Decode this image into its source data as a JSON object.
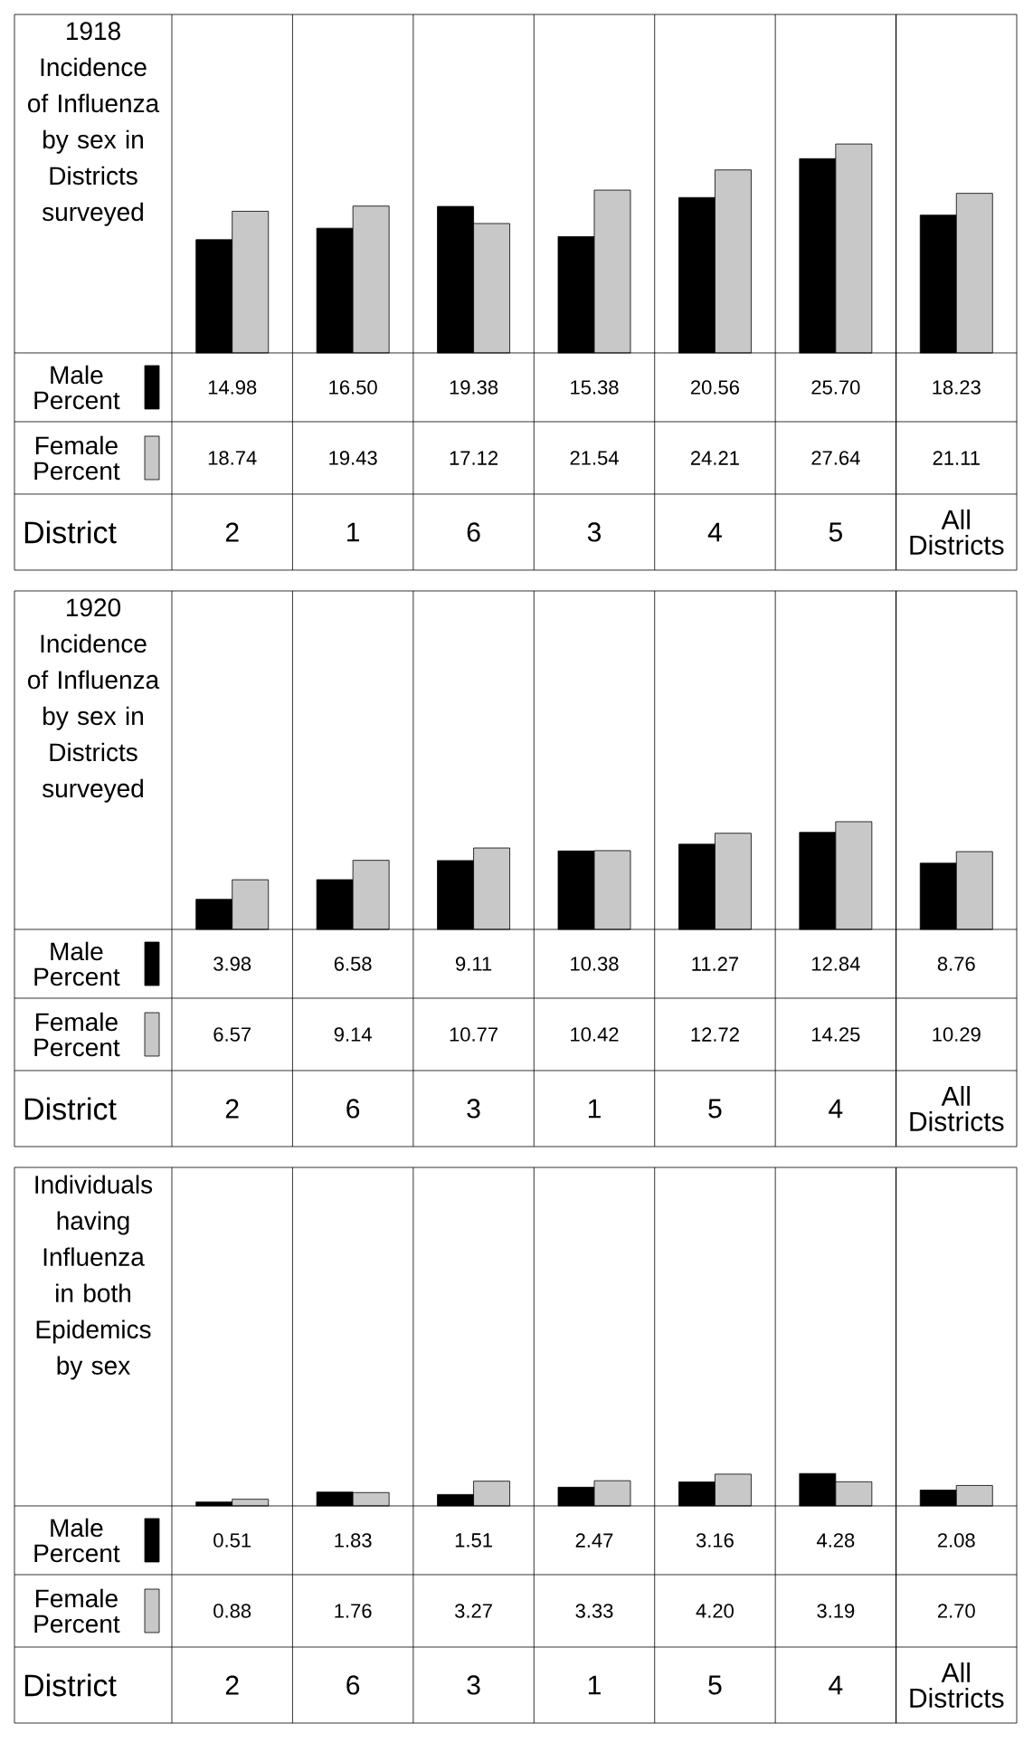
{
  "chart_data": [
    {
      "type": "bar",
      "title": "1918 Incidence of Influenza by sex in Districts surveyed",
      "xlabel": "District",
      "legend": "left",
      "categories": [
        "2",
        "1",
        "6",
        "3",
        "4",
        "5",
        "All Districts"
      ],
      "series": [
        {
          "name": "Male Percent",
          "color": "#000000",
          "values": [
            14.98,
            16.5,
            19.38,
            15.38,
            20.56,
            25.7,
            18.23
          ],
          "value_labels": [
            "14.98",
            "16.50",
            "19.38",
            "15.38",
            "20.56",
            "25.70",
            "18.23"
          ]
        },
        {
          "name": "Female Percent",
          "color": "#c8c8c8",
          "values": [
            18.74,
            19.43,
            17.12,
            21.54,
            24.21,
            27.64,
            21.11
          ],
          "value_labels": [
            "18.74",
            "19.43",
            "17.12",
            "21.54",
            "24.21",
            "27.64",
            "21.11"
          ]
        }
      ]
    },
    {
      "type": "bar",
      "title": "1920 Incidence of Influenza by sex in Districts surveyed",
      "xlabel": "District",
      "legend": "left",
      "categories": [
        "2",
        "6",
        "3",
        "1",
        "5",
        "4",
        "All Districts"
      ],
      "series": [
        {
          "name": "Male Percent",
          "color": "#000000",
          "values": [
            3.98,
            6.58,
            9.11,
            10.38,
            11.27,
            12.84,
            8.76
          ],
          "value_labels": [
            "3.98",
            "6.58",
            "9.11",
            "10.38",
            "11.27",
            "12.84",
            "8.76"
          ]
        },
        {
          "name": "Female Percent",
          "color": "#c8c8c8",
          "values": [
            6.57,
            9.14,
            10.77,
            10.42,
            12.72,
            14.25,
            10.29
          ],
          "value_labels": [
            "6.57",
            "9.14",
            "10.77",
            "10.42",
            "12.72",
            "14.25",
            "10.29"
          ]
        }
      ]
    },
    {
      "type": "bar",
      "title": "Individuals having Influenza in both Epidemics by sex",
      "xlabel": "District",
      "legend": "left",
      "categories": [
        "2",
        "6",
        "3",
        "1",
        "5",
        "4",
        "All Districts"
      ],
      "series": [
        {
          "name": "Male Percent",
          "color": "#000000",
          "values": [
            0.51,
            1.83,
            1.51,
            2.47,
            3.16,
            4.28,
            2.08
          ],
          "value_labels": [
            "0.51",
            "1.83",
            "1.51",
            "2.47",
            "3.16",
            "4.28",
            "2.08"
          ]
        },
        {
          "name": "Female Percent",
          "color": "#c8c8c8",
          "values": [
            0.88,
            1.76,
            3.27,
            3.33,
            4.2,
            3.19,
            2.7
          ],
          "value_labels": [
            "0.88",
            "1.76",
            "3.27",
            "3.33",
            "4.20",
            "3.19",
            "2.70"
          ]
        }
      ]
    }
  ]
}
